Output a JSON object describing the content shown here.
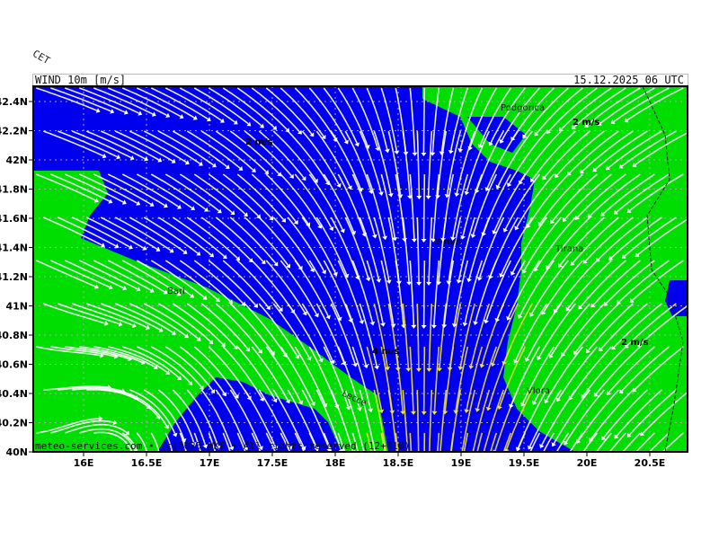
{
  "header": {
    "title": "WIND 10m [m/s]",
    "valid_time": "15.12.2025 06 UTC",
    "corner_label": "CET"
  },
  "map": {
    "lon_ticks": [
      "16E",
      "16.5E",
      "17E",
      "17.5E",
      "18E",
      "18.5E",
      "19E",
      "19.5E",
      "20E",
      "20.5E"
    ],
    "lat_ticks": [
      "40N",
      "40.2N",
      "40.4N",
      "40.6N",
      "40.8N",
      "41N",
      "41.2N",
      "41.4N",
      "41.6N",
      "41.8N",
      "42N",
      "42.2N",
      "42.4N"
    ],
    "cities": [
      "Podgorica",
      "Tirana",
      "Vlora",
      "Bari",
      "Lecce"
    ],
    "speed_labels": [
      "2 m/s",
      "2 m/s",
      "2 m/s",
      "2 m/s",
      "4 m/s"
    ],
    "colors": {
      "low_speed": "#00dd00",
      "mid_speed": "#0000ee",
      "streamline": "#ffffff",
      "strong_streamline": "#f0e040"
    }
  },
  "footer": {
    "credit": "meteo-services.com • (c)2025 WKF • All rights reserved (12+018)"
  }
}
